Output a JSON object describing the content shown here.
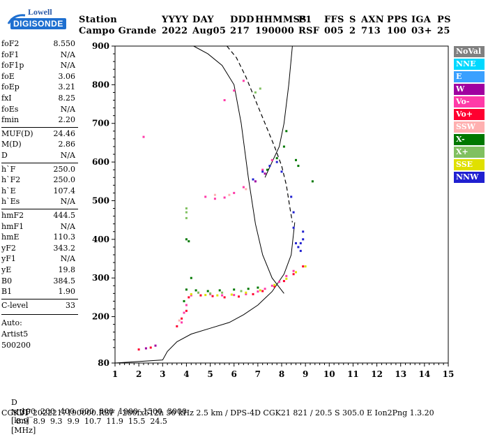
{
  "logo": {
    "brand": "Lowell",
    "product": "DIGISONDE"
  },
  "header": {
    "labels": [
      "Station",
      "YYYY",
      "DAY",
      "DDD",
      "HHMMSS",
      "P1",
      "FFS",
      "S",
      "AXN",
      "PPS",
      "IGA",
      "PS"
    ],
    "values": [
      "Campo Grande",
      "2022",
      "Aug05",
      "217",
      "190000",
      "RSF",
      "005",
      "2",
      "713",
      "100",
      "03+",
      "25"
    ]
  },
  "params": [
    {
      "k": "foF2",
      "v": "8.550"
    },
    {
      "k": "foF1",
      "v": "N/A"
    },
    {
      "k": "foF1p",
      "v": "N/A"
    },
    {
      "k": "foE",
      "v": "3.06"
    },
    {
      "k": "foEp",
      "v": "3.21"
    },
    {
      "k": "fxI",
      "v": "8.25"
    },
    {
      "k": "foEs",
      "v": "N/A"
    },
    {
      "k": "fmin",
      "v": "2.20"
    },
    {
      "k": "MUF(D)",
      "v": "24.46"
    },
    {
      "k": "M(D)",
      "v": "2.86"
    },
    {
      "k": "D",
      "v": "N/A"
    },
    {
      "k": "h`F",
      "v": "250.0"
    },
    {
      "k": "h`F2",
      "v": "250.0"
    },
    {
      "k": "h`E",
      "v": "107.4"
    },
    {
      "k": "h`Es",
      "v": "N/A"
    },
    {
      "k": "hmF2",
      "v": "444.5"
    },
    {
      "k": "hmF1",
      "v": "N/A"
    },
    {
      "k": "hmE",
      "v": "110.3"
    },
    {
      "k": "yF2",
      "v": "343.2"
    },
    {
      "k": "yF1",
      "v": "N/A"
    },
    {
      "k": "yE",
      "v": "19.8"
    },
    {
      "k": "B0",
      "v": "384.5"
    },
    {
      "k": "B1",
      "v": "1.90"
    },
    {
      "k": "C-level",
      "v": "33"
    }
  ],
  "autoscaling": {
    "line1": "Auto:",
    "line2": "Artist5",
    "line3": "500200"
  },
  "legend": [
    {
      "label": "NoVal",
      "color": "#808080"
    },
    {
      "label": "NNE",
      "color": "#00d8ff"
    },
    {
      "label": "E",
      "color": "#3aa0ff"
    },
    {
      "label": "W",
      "color": "#a000a0"
    },
    {
      "label": "Vo-",
      "color": "#ff3aa8"
    },
    {
      "label": "Vo+",
      "color": "#ff0030"
    },
    {
      "label": "SSW",
      "color": "#ffb0b0"
    },
    {
      "label": "X-",
      "color": "#007800"
    },
    {
      "label": "X+",
      "color": "#80c060"
    },
    {
      "label": "SSE",
      "color": "#e0e000"
    },
    {
      "label": "NNW",
      "color": "#2020d0"
    }
  ],
  "chart_data": {
    "type": "scatter",
    "xlim": [
      1,
      15
    ],
    "ylim": [
      80,
      900
    ],
    "xticks": [
      1,
      2,
      3,
      4,
      5,
      6,
      7,
      8,
      9,
      10,
      11,
      12,
      13,
      14,
      15
    ],
    "yticks": [
      80,
      200,
      300,
      400,
      500,
      600,
      700,
      800,
      900
    ],
    "xlabel": "",
    "ylabel": "",
    "profile_solid": [
      [
        1,
        1,
        80
      ],
      [
        1,
        3.0,
        88
      ],
      [
        1,
        3.2,
        110
      ],
      [
        1,
        3.6,
        135
      ],
      [
        1,
        4.2,
        155
      ],
      [
        1,
        5.0,
        170
      ],
      [
        1,
        5.8,
        185
      ],
      [
        1,
        6.4,
        205
      ],
      [
        1,
        7.0,
        230
      ],
      [
        1,
        7.6,
        265
      ],
      [
        1,
        8.1,
        310
      ],
      [
        1,
        8.4,
        360
      ],
      [
        1,
        8.55,
        444
      ]
    ],
    "profile_topside": [
      [
        4.3,
        900
      ],
      [
        4.9,
        880
      ],
      [
        5.5,
        850
      ],
      [
        6.0,
        800
      ],
      [
        6.3,
        700
      ],
      [
        6.6,
        560
      ],
      [
        6.9,
        440
      ],
      [
        7.2,
        360
      ],
      [
        7.6,
        300
      ],
      [
        8.1,
        260
      ]
    ],
    "profile_upper": [
      [
        7.3,
        560
      ],
      [
        7.6,
        600
      ],
      [
        7.9,
        640
      ],
      [
        8.1,
        700
      ],
      [
        8.3,
        800
      ],
      [
        8.45,
        900
      ]
    ],
    "profile_dashed": [
      [
        5.7,
        900
      ],
      [
        6.1,
        870
      ],
      [
        6.5,
        820
      ],
      [
        6.9,
        760
      ],
      [
        7.3,
        700
      ],
      [
        7.7,
        640
      ],
      [
        8.0,
        590
      ],
      [
        8.2,
        540
      ],
      [
        8.35,
        480
      ],
      [
        8.45,
        444
      ]
    ],
    "groups": [
      {
        "name": "Vo-",
        "color": "#ff3aa8",
        "points": [
          [
            4.2,
            255
          ],
          [
            4.5,
            262
          ],
          [
            5.0,
            258
          ],
          [
            5.5,
            255
          ],
          [
            6.0,
            256
          ],
          [
            6.5,
            258
          ],
          [
            7.0,
            265
          ],
          [
            7.3,
            272
          ],
          [
            7.6,
            280
          ],
          [
            7.9,
            290
          ],
          [
            8.2,
            305
          ],
          [
            8.5,
            318
          ],
          [
            4.8,
            510
          ],
          [
            5.2,
            505
          ],
          [
            5.6,
            508
          ],
          [
            6.0,
            520
          ],
          [
            6.4,
            535
          ],
          [
            6.8,
            555
          ],
          [
            7.2,
            580
          ],
          [
            7.6,
            605
          ],
          [
            3.8,
            185
          ],
          [
            3.9,
            210
          ],
          [
            4.0,
            230
          ],
          [
            2.2,
            665
          ],
          [
            5.6,
            760
          ],
          [
            6.0,
            785
          ],
          [
            6.4,
            810
          ]
        ]
      },
      {
        "name": "Vo+",
        "color": "#ff0030",
        "points": [
          [
            4.1,
            250
          ],
          [
            4.6,
            255
          ],
          [
            5.1,
            253
          ],
          [
            5.6,
            250
          ],
          [
            6.2,
            252
          ],
          [
            6.8,
            258
          ],
          [
            7.2,
            266
          ],
          [
            7.7,
            278
          ],
          [
            8.1,
            292
          ],
          [
            8.5,
            310
          ],
          [
            8.9,
            330
          ],
          [
            3.6,
            175
          ],
          [
            3.8,
            195
          ],
          [
            4.0,
            215
          ],
          [
            2.0,
            115
          ],
          [
            2.5,
            120
          ]
        ]
      },
      {
        "name": "X-",
        "color": "#007800",
        "points": [
          [
            4.0,
            270
          ],
          [
            4.4,
            268
          ],
          [
            4.9,
            266
          ],
          [
            5.4,
            268
          ],
          [
            6.0,
            270
          ],
          [
            6.6,
            272
          ],
          [
            7.0,
            275
          ],
          [
            4.2,
            300
          ],
          [
            7.4,
            580
          ],
          [
            7.8,
            610
          ],
          [
            8.1,
            640
          ],
          [
            8.2,
            680
          ],
          [
            8.6,
            605
          ],
          [
            8.7,
            590
          ],
          [
            9.3,
            550
          ],
          [
            3.9,
            240
          ],
          [
            4.0,
            400
          ],
          [
            4.1,
            395
          ]
        ]
      },
      {
        "name": "X+",
        "color": "#80c060",
        "points": [
          [
            4.5,
            262
          ],
          [
            5.0,
            260
          ],
          [
            5.5,
            262
          ],
          [
            6.3,
            266
          ],
          [
            4.0,
            455
          ],
          [
            4.0,
            470
          ],
          [
            4.0,
            480
          ],
          [
            6.9,
            780
          ],
          [
            7.1,
            790
          ]
        ]
      },
      {
        "name": "SSE",
        "color": "#e0e000",
        "points": [
          [
            4.2,
            258
          ],
          [
            4.8,
            256
          ],
          [
            5.3,
            255
          ],
          [
            5.9,
            257
          ],
          [
            6.5,
            262
          ],
          [
            7.1,
            268
          ],
          [
            7.7,
            282
          ],
          [
            8.2,
            298
          ],
          [
            8.6,
            315
          ],
          [
            9.0,
            330
          ]
        ]
      },
      {
        "name": "NNW",
        "color": "#2020d0",
        "points": [
          [
            6.8,
            555
          ],
          [
            7.2,
            575
          ],
          [
            7.5,
            590
          ],
          [
            7.8,
            600
          ],
          [
            8.0,
            575
          ],
          [
            8.4,
            510
          ],
          [
            8.5,
            470
          ],
          [
            8.5,
            430
          ],
          [
            8.6,
            390
          ],
          [
            8.7,
            380
          ],
          [
            8.8,
            390
          ],
          [
            8.9,
            400
          ],
          [
            8.9,
            420
          ],
          [
            8.8,
            370
          ]
        ]
      },
      {
        "name": "SSW",
        "color": "#ffb0b0",
        "points": [
          [
            5.2,
            515
          ],
          [
            5.8,
            515
          ],
          [
            6.5,
            530
          ],
          [
            3.7,
            190
          ]
        ]
      },
      {
        "name": "W",
        "color": "#a000a0",
        "points": [
          [
            2.3,
            118
          ],
          [
            2.7,
            125
          ],
          [
            6.9,
            550
          ],
          [
            7.3,
            570
          ]
        ]
      }
    ]
  },
  "footer": {
    "d_label": "D",
    "d_values": [
      "100",
      "200",
      "400",
      "600",
      "800",
      "1000",
      "1500",
      "3000"
    ],
    "d_unit": "[km]",
    "muf_label": "MUF",
    "muf_values": [
      "8.9",
      "8.9",
      "9.3",
      "9.9",
      "10.7",
      "11.9",
      "15.5",
      "24.5"
    ],
    "muf_unit": "[MHz]",
    "fileinfo": "CGK21_2022217190000.RSF / 280fx512h 50 kHz 2.5 km / DPS-4D CGK21 821 / 20.5 S 305.0 E Ion2Png 1.3.20"
  }
}
